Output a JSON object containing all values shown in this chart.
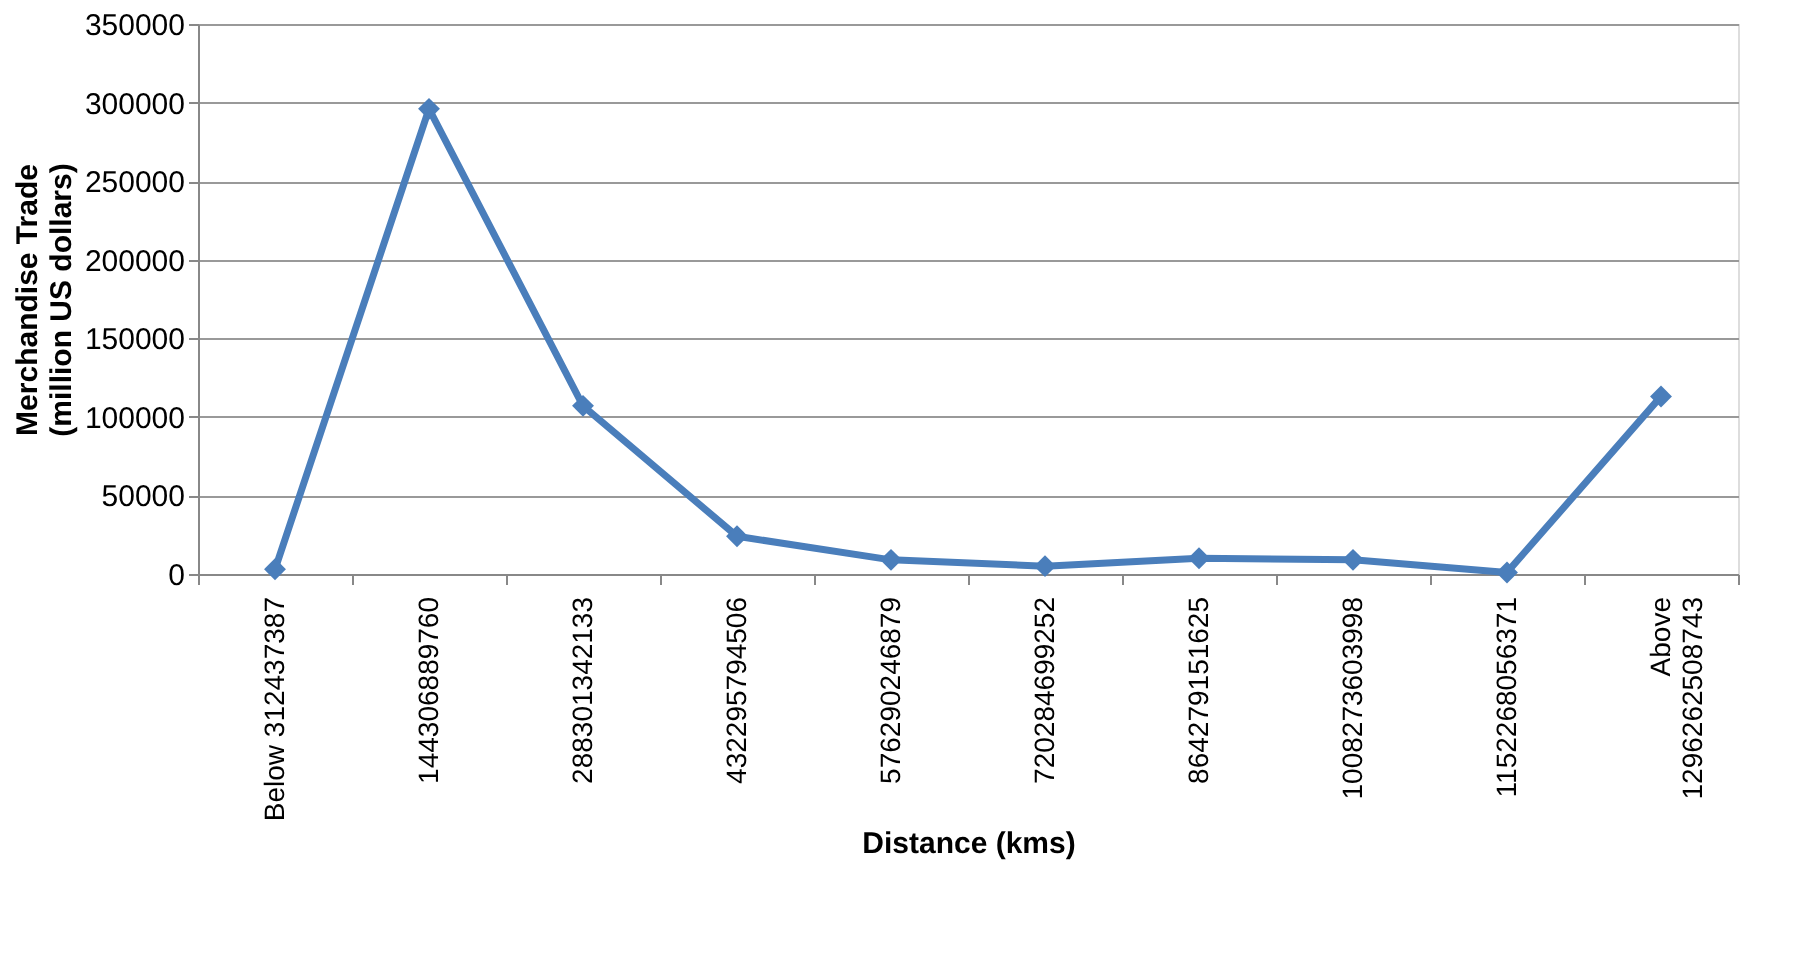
{
  "chart_data": {
    "type": "line",
    "xlabel": "Distance (kms)",
    "ylabel": "Merchandise Trade\n(million US dollars)",
    "categories": [
      "Below 312437387",
      "144306889760",
      "288301342133",
      "432295794506",
      "576290246879",
      "720284699252",
      "864279151625",
      "1008273603998",
      "1152268056371",
      "Above\n1296262508743"
    ],
    "series": [
      {
        "color": "#4a7ebb",
        "values": [
          3000,
          296000,
          107000,
          24000,
          9000,
          5000,
          10000,
          9000,
          1000,
          113000
        ]
      }
    ],
    "ylim": [
      0,
      350000
    ],
    "yticks": [
      0,
      50000,
      100000,
      150000,
      200000,
      250000,
      300000,
      350000
    ],
    "grid": "y",
    "marker": "diamond",
    "line_style": "solid"
  }
}
